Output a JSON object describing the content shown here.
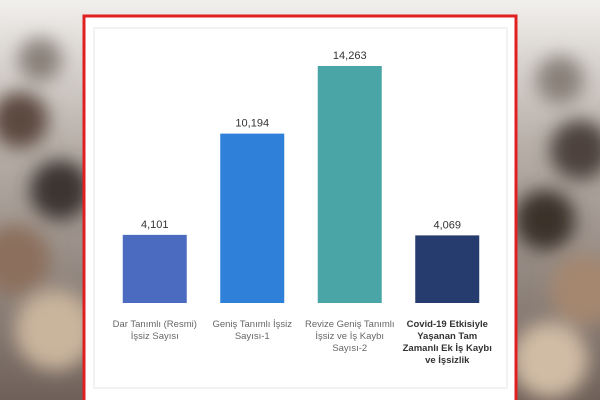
{
  "chart_data": {
    "type": "bar",
    "categories": [
      "Dar Tanımlı (Resmi)\nİşsiz Sayısı",
      "Geniş Tanımlı İşsiz\nSayısı-1",
      "Revize Geniş Tanımlı\nİşsiz ve İş Kaybı\nSayısı-2",
      "Covid-19 Etkisiyle\nYaşanan Tam\nZamanlı  Ek İş Kaybı\nve İşsizlik"
    ],
    "values": [
      4101,
      10194,
      14263,
      4069
    ],
    "value_labels": [
      "4,101",
      "10,194",
      "14,263",
      "4,069"
    ],
    "colors": [
      "#4a6bbf",
      "#2f80d8",
      "#4aa6a6",
      "#263c6e"
    ]
  }
}
